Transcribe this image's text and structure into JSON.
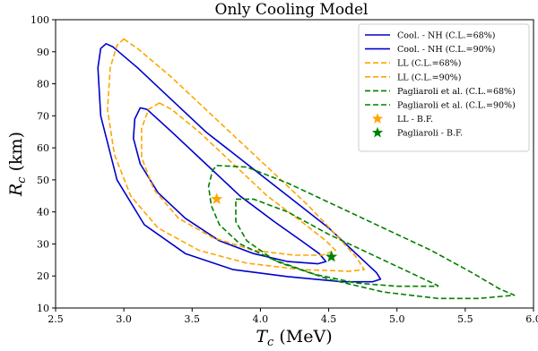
{
  "chart_data": {
    "type": "line",
    "title": "Only Cooling Model",
    "xlabel": "T",
    "xlabel_sub": "c",
    "xlabel_unit": " (MeV)",
    "ylabel": "R",
    "ylabel_sub": "c",
    "ylabel_unit": " (km)",
    "xlim": [
      2.5,
      6.0
    ],
    "ylim": [
      10,
      100
    ],
    "xticks": [
      2.5,
      3.0,
      3.5,
      4.0,
      4.5,
      5.0,
      5.5,
      6.0
    ],
    "xtick_labels": [
      "2.5",
      "3.0",
      "3.5",
      "4.0",
      "4.5",
      "5.0",
      "5.5",
      "6.0"
    ],
    "yticks": [
      10,
      20,
      30,
      40,
      50,
      60,
      70,
      80,
      90,
      100
    ],
    "ytick_labels": [
      "10",
      "20",
      "30",
      "40",
      "50",
      "60",
      "70",
      "80",
      "90",
      "100"
    ],
    "grid": false,
    "legend_position": "top-right",
    "series": [
      {
        "name": "Cool. - NH (C.L.=68%)",
        "color": "#0000cc",
        "dash": "solid",
        "kind": "contour",
        "points": [
          [
            3.12,
            72.5
          ],
          [
            3.17,
            72
          ],
          [
            3.35,
            65
          ],
          [
            3.6,
            55
          ],
          [
            3.85,
            45
          ],
          [
            4.1,
            37
          ],
          [
            4.3,
            31
          ],
          [
            4.43,
            27
          ],
          [
            4.48,
            24.5
          ],
          [
            4.42,
            23.8
          ],
          [
            4.2,
            24.5
          ],
          [
            3.95,
            27
          ],
          [
            3.7,
            31
          ],
          [
            3.45,
            38
          ],
          [
            3.25,
            46
          ],
          [
            3.12,
            55
          ],
          [
            3.07,
            63
          ],
          [
            3.08,
            69
          ],
          [
            3.12,
            72.5
          ]
        ]
      },
      {
        "name": "Cool. - NH (C.L.=90%)",
        "color": "#0000cc",
        "dash": "solid",
        "kind": "contour",
        "points": [
          [
            2.87,
            92.5
          ],
          [
            2.92,
            91.5
          ],
          [
            3.1,
            85
          ],
          [
            3.35,
            75
          ],
          [
            3.6,
            65
          ],
          [
            3.9,
            55
          ],
          [
            4.2,
            45
          ],
          [
            4.5,
            35
          ],
          [
            4.7,
            27
          ],
          [
            4.85,
            21
          ],
          [
            4.88,
            19
          ],
          [
            4.82,
            18.2
          ],
          [
            4.6,
            18.2
          ],
          [
            4.2,
            19.8
          ],
          [
            3.8,
            22
          ],
          [
            3.45,
            27
          ],
          [
            3.15,
            36
          ],
          [
            2.95,
            50
          ],
          [
            2.83,
            70
          ],
          [
            2.81,
            85
          ],
          [
            2.83,
            91
          ],
          [
            2.87,
            92.5
          ]
        ]
      },
      {
        "name": "LL (C.L.=68%)",
        "color": "#ffa500",
        "dash": "dashed",
        "kind": "contour",
        "points": [
          [
            3.26,
            74
          ],
          [
            3.35,
            72
          ],
          [
            3.55,
            65
          ],
          [
            3.8,
            55
          ],
          [
            4.05,
            45
          ],
          [
            4.3,
            37
          ],
          [
            4.48,
            31
          ],
          [
            4.55,
            28
          ],
          [
            4.45,
            26.5
          ],
          [
            4.25,
            26.5
          ],
          [
            3.95,
            28
          ],
          [
            3.65,
            32
          ],
          [
            3.4,
            38
          ],
          [
            3.22,
            47
          ],
          [
            3.13,
            57
          ],
          [
            3.13,
            66
          ],
          [
            3.18,
            72
          ],
          [
            3.26,
            74
          ]
        ]
      },
      {
        "name": "LL (C.L.=90%)",
        "color": "#ffa500",
        "dash": "dashed",
        "kind": "contour",
        "points": [
          [
            3.0,
            94
          ],
          [
            3.1,
            91
          ],
          [
            3.35,
            82
          ],
          [
            3.6,
            72
          ],
          [
            3.85,
            62
          ],
          [
            4.1,
            52
          ],
          [
            4.35,
            42
          ],
          [
            4.55,
            33
          ],
          [
            4.7,
            26
          ],
          [
            4.76,
            22
          ],
          [
            4.65,
            21.5
          ],
          [
            4.3,
            22
          ],
          [
            3.9,
            24
          ],
          [
            3.55,
            28
          ],
          [
            3.25,
            35
          ],
          [
            3.05,
            45
          ],
          [
            2.93,
            58
          ],
          [
            2.88,
            72
          ],
          [
            2.9,
            85
          ],
          [
            2.95,
            92
          ],
          [
            3.0,
            94
          ]
        ]
      },
      {
        "name": "Pagliaroli et al. (C.L.=68%)",
        "color": "#008000",
        "dash": "dashed",
        "kind": "contour",
        "points": [
          [
            3.82,
            44
          ],
          [
            3.95,
            44
          ],
          [
            4.2,
            40
          ],
          [
            4.5,
            33
          ],
          [
            4.8,
            27
          ],
          [
            5.05,
            22
          ],
          [
            5.3,
            17
          ],
          [
            5.3,
            16.8
          ],
          [
            5.0,
            16.8
          ],
          [
            4.7,
            17.8
          ],
          [
            4.4,
            20.5
          ],
          [
            4.1,
            25
          ],
          [
            3.9,
            31
          ],
          [
            3.82,
            37
          ],
          [
            3.82,
            44
          ]
        ]
      },
      {
        "name": "Pagliaroli et al. (C.L.=90%)",
        "color": "#008000",
        "dash": "dashed",
        "kind": "contour",
        "points": [
          [
            3.68,
            54.5
          ],
          [
            3.9,
            54
          ],
          [
            4.2,
            49
          ],
          [
            4.55,
            42
          ],
          [
            4.9,
            35
          ],
          [
            5.25,
            28
          ],
          [
            5.55,
            21
          ],
          [
            5.75,
            16
          ],
          [
            5.86,
            14
          ],
          [
            5.6,
            13
          ],
          [
            5.3,
            13
          ],
          [
            4.9,
            15
          ],
          [
            4.5,
            19
          ],
          [
            4.15,
            24
          ],
          [
            3.85,
            30
          ],
          [
            3.7,
            36
          ],
          [
            3.64,
            42
          ],
          [
            3.62,
            48
          ],
          [
            3.65,
            53
          ],
          [
            3.68,
            54.5
          ]
        ]
      },
      {
        "name": "LL - B.F.",
        "color": "#ffa500",
        "kind": "star",
        "points": [
          [
            3.68,
            44
          ]
        ]
      },
      {
        "name": "Pagliaroli - B.F.",
        "color": "#008000",
        "kind": "star",
        "points": [
          [
            4.52,
            26
          ]
        ]
      }
    ]
  }
}
